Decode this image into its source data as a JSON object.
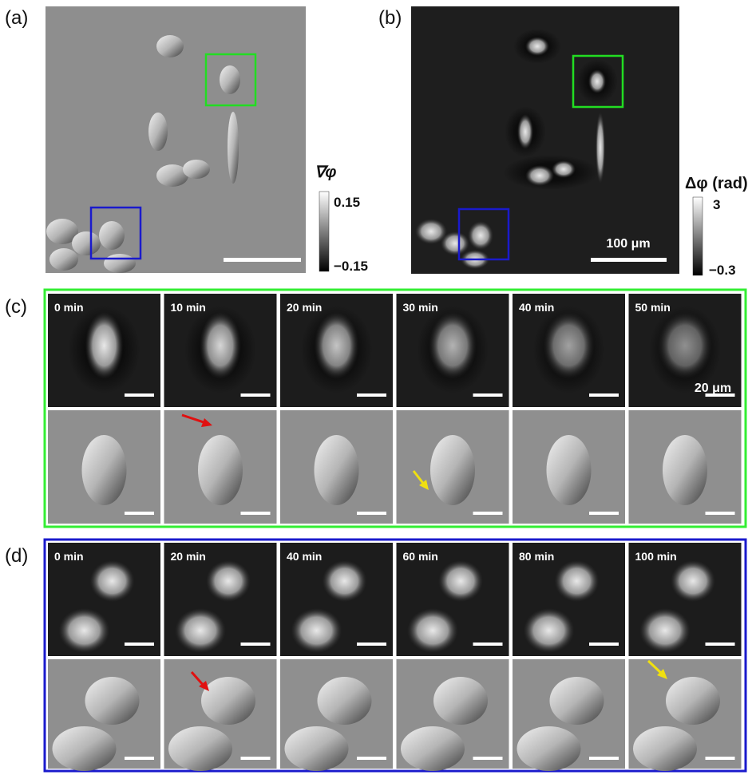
{
  "panels": [
    {
      "label": "(a)",
      "colorbar": {
        "title": "∇φ",
        "max": "0.15",
        "min": "−0.15"
      }
    },
    {
      "label": "(b)",
      "colorbar": {
        "title": "Δφ (rad)",
        "max": "3",
        "min": "−0.3"
      },
      "scale_bar": "100 μm"
    },
    {
      "label": "(c)",
      "times": [
        "0 min",
        "10 min",
        "20 min",
        "30 min",
        "40 min",
        "50 min"
      ],
      "scale_bar": "20 μm"
    },
    {
      "label": "(d)",
      "times": [
        "0 min",
        "20 min",
        "40 min",
        "60 min",
        "80 min",
        "100 min"
      ]
    }
  ]
}
